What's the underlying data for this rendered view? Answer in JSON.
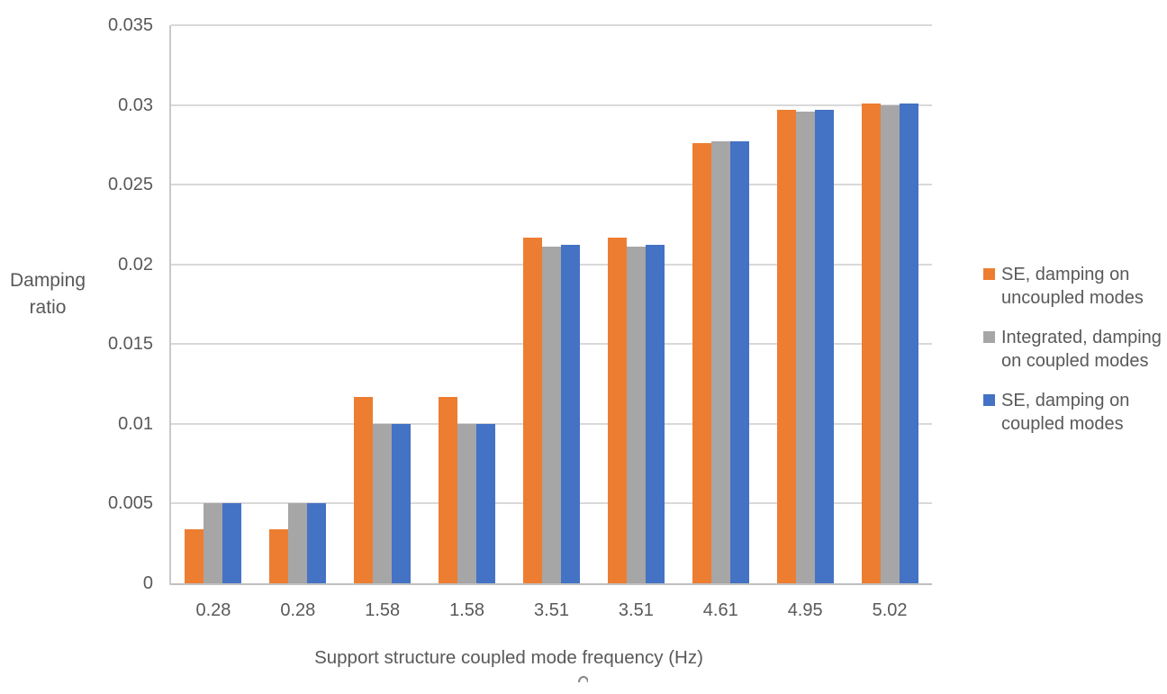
{
  "chart_data": {
    "type": "bar",
    "title": "",
    "xlabel": "Support structure coupled mode frequency (Hz)",
    "ylabel": "Damping ratio",
    "categories": [
      "0.28",
      "0.28",
      "1.58",
      "1.58",
      "3.51",
      "3.51",
      "4.61",
      "4.95",
      "5.02"
    ],
    "series": [
      {
        "name": "SE, damping on uncoupled modes",
        "legend_lines": "SE, damping on\nuncoupled modes",
        "color": "#ED7D31",
        "values": [
          0.0034,
          0.0034,
          0.0117,
          0.0117,
          0.0217,
          0.0217,
          0.0276,
          0.0297,
          0.0301
        ]
      },
      {
        "name": "Integrated, damping on coupled modes",
        "legend_lines": "Integrated, damping\non coupled modes",
        "color": "#A6A6A6",
        "values": [
          0.005,
          0.005,
          0.01,
          0.01,
          0.0211,
          0.0211,
          0.0277,
          0.0296,
          0.03
        ]
      },
      {
        "name": "SE, damping on coupled modes",
        "legend_lines": "SE, damping on\ncoupled modes",
        "color": "#4472C4",
        "values": [
          0.005,
          0.005,
          0.01,
          0.01,
          0.0212,
          0.0212,
          0.0277,
          0.0297,
          0.0301
        ]
      }
    ],
    "ylim": [
      0,
      0.035
    ],
    "y_ticks": [
      0,
      0.005,
      0.01,
      0.015,
      0.02,
      0.025,
      0.03,
      0.035
    ],
    "y_tick_labels": [
      "0",
      "0.005",
      "0.01",
      "0.015",
      "0.02",
      "0.025",
      "0.03",
      "0.035"
    ],
    "grid": true,
    "legend_position": "right",
    "colors": {
      "text": "#595959",
      "gridline": "#D9D9D9",
      "axis_line": "#BFBFBF"
    }
  }
}
